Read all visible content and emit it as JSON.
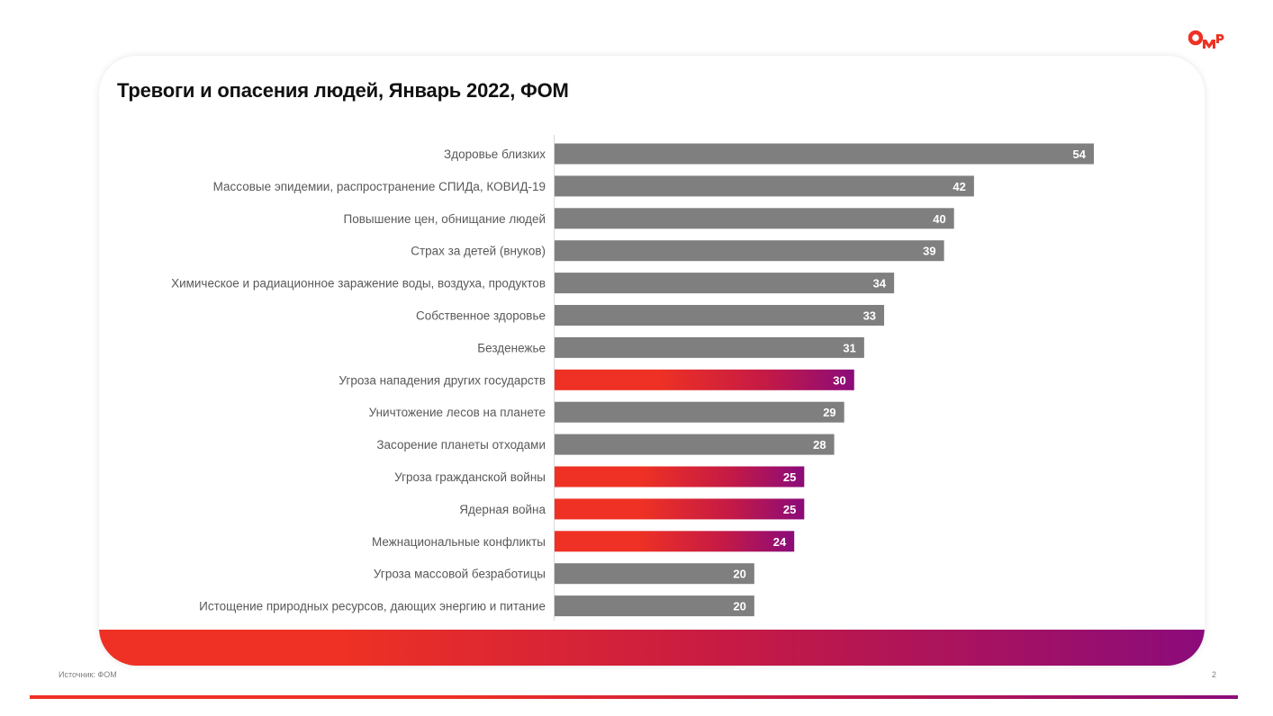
{
  "brand": {
    "logo_text": "ОМР",
    "accent_red": "#EE3124",
    "accent_purple": "#8B0B7A",
    "bar_gray": "#7F7F7F"
  },
  "footer": {
    "source": "Источник: ФОМ",
    "page_number": "2"
  },
  "chart_data": {
    "type": "bar",
    "orientation": "horizontal",
    "title": "Тревоги и опасения людей, Январь 2022, ФОМ",
    "xlabel": "",
    "ylabel": "",
    "xlim": [
      0,
      54
    ],
    "grid": false,
    "legend": "none",
    "categories": [
      "Здоровье близких",
      "Массовые эпидемии, распространение СПИДа, КОВИД-19",
      "Повышение цен, обнищание людей",
      "Страх за детей (внуков)",
      "Химическое и радиационное заражение воды, воздуха, продуктов",
      "Собственное здоровье",
      "Безденежье",
      "Угроза нападения других государств",
      "Уничтожение лесов на планете",
      "Засорение планеты отходами",
      "Угроза гражданской войны",
      "Ядерная война",
      "Межнациональные конфликты",
      "Угроза массовой безработицы",
      "Истощение природных ресурсов, дающих энергию и питание"
    ],
    "values": [
      54,
      42,
      40,
      39,
      34,
      33,
      31,
      30,
      29,
      28,
      25,
      25,
      24,
      20,
      20
    ],
    "highlighted": [
      false,
      false,
      false,
      false,
      false,
      false,
      false,
      true,
      false,
      false,
      true,
      true,
      true,
      false,
      false
    ],
    "data_labels": [
      "54",
      "42",
      "40",
      "39",
      "34",
      "33",
      "31",
      "30",
      "29",
      "28",
      "25",
      "25",
      "24",
      "20",
      "20"
    ]
  }
}
